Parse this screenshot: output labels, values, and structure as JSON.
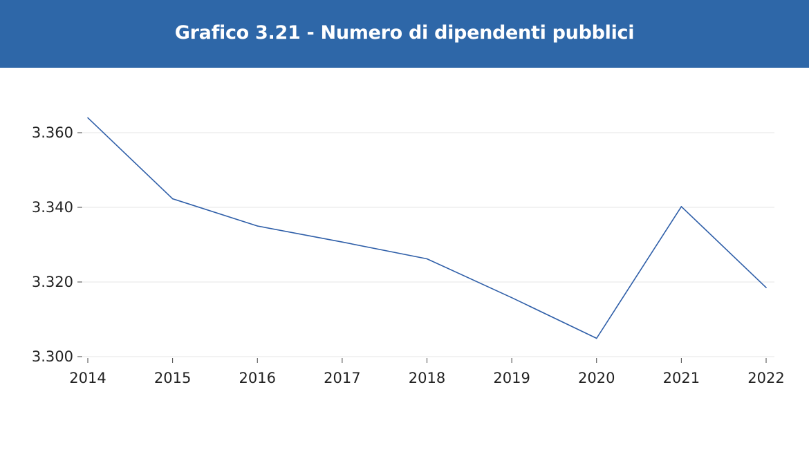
{
  "header": {
    "title": "Grafico 3.21 - Numero di dipendenti pubblici"
  },
  "colors": {
    "header_bg": "#2e67a8",
    "line": "#2e5ea8",
    "grid": "#e6e6e6"
  },
  "chart_data": {
    "type": "line",
    "title": "Grafico 3.21 - Numero di dipendenti pubblici",
    "xlabel": "",
    "ylabel": "",
    "categories": [
      "2014",
      "2015",
      "2016",
      "2017",
      "2018",
      "2019",
      "2020",
      "2021",
      "2022"
    ],
    "series": [
      {
        "values": [
          3364,
          3342.3,
          3335,
          3330.7,
          3326.2,
          3315.8,
          3304.9,
          3340.2,
          3318.5
        ]
      }
    ],
    "y_ticks": [
      3300,
      3320,
      3340,
      3360
    ],
    "y_tick_labels": [
      "3.300",
      "3.320",
      "3.340",
      "3.360"
    ],
    "ylim": [
      3300,
      3360
    ],
    "grid": true,
    "legend": "none"
  }
}
